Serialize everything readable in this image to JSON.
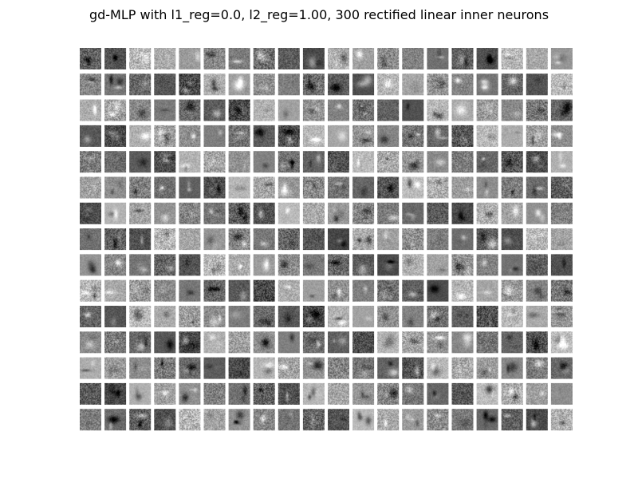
{
  "title": "gd-MLP with l1_reg=0.0, l2_reg=1.00, 300 rectified linear inner neurons",
  "grid": {
    "rows": 15,
    "cols": 20,
    "tile_pixels": 28,
    "colormap": "grayscale",
    "background": "#ffffff"
  }
}
